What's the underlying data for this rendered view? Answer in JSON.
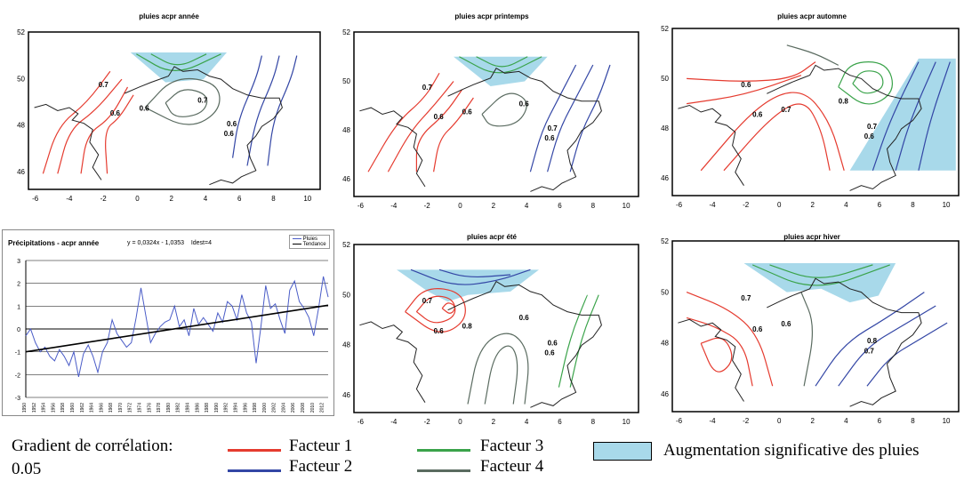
{
  "colors": {
    "facteur1": "#e53b2f",
    "facteur2": "#3346a5",
    "facteur3": "#3aa34a",
    "facteur4": "#5a6b60",
    "significant": "#a8d9ea",
    "series": "#4a5cc7",
    "trend": "#000000"
  },
  "maps": [
    {
      "id": "annee",
      "title": "pluies acpr année",
      "labels": [
        "0.7",
        "0.6",
        "0.6",
        "0.6",
        "0.6",
        "0.7"
      ]
    },
    {
      "id": "printemps",
      "title": "pluies acpr printemps",
      "labels": [
        "0.7",
        "0.6",
        "0.6",
        "0.6",
        "0.7",
        "0.6"
      ]
    },
    {
      "id": "automne",
      "title": "pluies acpr automne",
      "labels": [
        "0.6",
        "0.6",
        "0.7",
        "0.6",
        "0.7",
        "0.8"
      ]
    },
    {
      "id": "ete",
      "title": "pluies acpr été",
      "labels": [
        "0.7",
        "0.6",
        "0.8",
        "0.6",
        "0.6",
        "0.6"
      ]
    },
    {
      "id": "hiver",
      "title": "pluies acpr hiver",
      "labels": [
        "0.7",
        "0.6",
        "0.6",
        "0.7",
        "0.8"
      ]
    }
  ],
  "map_axes": {
    "x_ticks": [
      "-6",
      "-4",
      "-2",
      "0",
      "2",
      "4",
      "6",
      "8",
      "10"
    ],
    "y_ticks": [
      "46",
      "48",
      "50",
      "52"
    ]
  },
  "timeseries": {
    "title": "Précipitations - acpr année",
    "equation": "y = 0,0324x - 1,0353",
    "extra": "Idest=4",
    "legend": {
      "series": "Pluies",
      "trend": "Tendance"
    },
    "y_ticks": [
      "3",
      "2",
      "1",
      "0",
      "-1",
      "-2",
      "-3"
    ],
    "x_ticks": [
      "1950",
      "1952",
      "1954",
      "1956",
      "1958",
      "1960",
      "1962",
      "1964",
      "1966",
      "1968",
      "1970",
      "1972",
      "1974",
      "1976",
      "1978",
      "1980",
      "1982",
      "1984",
      "1986",
      "1988",
      "1990",
      "1992",
      "1994",
      "1996",
      "1998",
      "2000",
      "2002",
      "2004",
      "2006",
      "2008",
      "2010",
      "2012"
    ]
  },
  "legend": {
    "gradient_label": "Gradient de corrélation:",
    "gradient_value": "0.05",
    "f1": "Facteur 1",
    "f2": "Facteur 2",
    "f3": "Facteur 3",
    "f4": "Facteur 4",
    "significant": "Augmentation significative des pluies"
  },
  "chart_data": [
    {
      "type": "line",
      "title": "Précipitations - acpr année",
      "annotation": "y = 0,0324x - 1,0353    Idest=4",
      "ylim": [
        -3,
        3
      ],
      "xlim": [
        1950,
        2013
      ],
      "grid": true,
      "legend_position": "top-right",
      "series": [
        {
          "name": "Pluies",
          "x": [
            1950,
            1951,
            1952,
            1953,
            1954,
            1955,
            1956,
            1957,
            1958,
            1959,
            1960,
            1961,
            1962,
            1963,
            1964,
            1965,
            1966,
            1967,
            1968,
            1969,
            1970,
            1971,
            1972,
            1973,
            1974,
            1975,
            1976,
            1977,
            1978,
            1979,
            1980,
            1981,
            1982,
            1983,
            1984,
            1985,
            1986,
            1987,
            1988,
            1989,
            1990,
            1991,
            1992,
            1993,
            1994,
            1995,
            1996,
            1997,
            1998,
            1999,
            2000,
            2001,
            2002,
            2003,
            2004,
            2005,
            2006,
            2007,
            2008,
            2009,
            2010,
            2011,
            2012,
            2013
          ],
          "values": [
            -0.3,
            0,
            -0.6,
            -1.0,
            -0.8,
            -1.2,
            -1.4,
            -0.9,
            -1.2,
            -1.6,
            -1.0,
            -2.1,
            -1.1,
            -0.7,
            -1.2,
            -1.9,
            -1.0,
            -0.6,
            0.4,
            -0.2,
            -0.5,
            -0.8,
            -0.6,
            0.5,
            1.8,
            0.6,
            -0.6,
            -0.2,
            0.1,
            0.3,
            0.4,
            1.0,
            0.1,
            0.4,
            -0.3,
            0.9,
            0.2,
            0.5,
            0.2,
            -0.1,
            0.7,
            0.3,
            1.2,
            1.0,
            0.4,
            1.5,
            0.7,
            0.3,
            -1.5,
            0.1,
            1.9,
            0.9,
            1.1,
            0.4,
            -0.2,
            1.7,
            2.1,
            1.2,
            0.9,
            0.5,
            -0.3,
            0.9,
            2.3,
            1.4
          ]
        },
        {
          "name": "Tendance",
          "x": [
            1950,
            2013
          ],
          "values": [
            -1.0,
            1.04
          ]
        }
      ]
    },
    {
      "type": "contour-map",
      "title": "pluies acpr année",
      "xlim": [
        -6,
        10
      ],
      "ylim": [
        45,
        52
      ]
    },
    {
      "type": "contour-map",
      "title": "pluies acpr printemps",
      "xlim": [
        -6,
        10
      ],
      "ylim": [
        45,
        52
      ]
    },
    {
      "type": "contour-map",
      "title": "pluies acpr automne",
      "xlim": [
        -6,
        10
      ],
      "ylim": [
        45,
        52
      ]
    },
    {
      "type": "contour-map",
      "title": "pluies acpr été",
      "xlim": [
        -6,
        10
      ],
      "ylim": [
        45,
        52
      ]
    },
    {
      "type": "contour-map",
      "title": "pluies acpr hiver",
      "xlim": [
        -6,
        10
      ],
      "ylim": [
        45,
        52
      ]
    }
  ]
}
